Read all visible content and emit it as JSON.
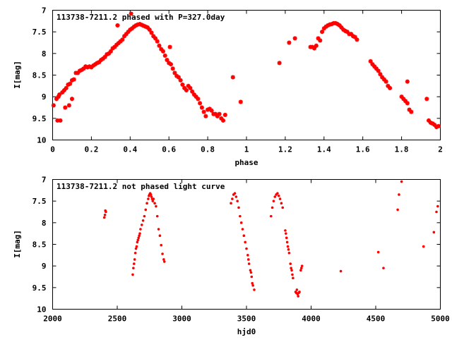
{
  "chart_data": [
    {
      "type": "scatter",
      "title": "113738-7211.2 phased with P=327.0day",
      "xlabel": "phase",
      "ylabel": "I[mag]",
      "xlim": [
        0,
        2
      ],
      "ylim": [
        10,
        7
      ],
      "y_inverted": true,
      "marker_color": "#ff0000",
      "marker": "cross",
      "x_ticks": [
        0,
        0.2,
        0.4,
        0.6,
        0.8,
        1,
        1.2,
        1.4,
        1.6,
        1.8,
        2
      ],
      "x_tick_labels": [
        "0",
        "0.2",
        "0.4",
        "0.6",
        "0.8",
        "1",
        "1.2",
        "1.4",
        "1.6",
        "1.8",
        "2"
      ],
      "y_ticks": [
        7,
        7.5,
        8,
        8.5,
        9,
        9.5,
        10
      ],
      "y_tick_labels": [
        "7",
        "7.5",
        "8",
        "8.5",
        "9",
        "9.5",
        "10"
      ],
      "grid": false,
      "legend": "none",
      "series": [
        {
          "points": [
            [
              0.005,
              9.2
            ],
            [
              0.02,
              9.05
            ],
            [
              0.025,
              9.55
            ],
            [
              0.03,
              9.0
            ],
            [
              0.035,
              8.95
            ],
            [
              0.04,
              9.55
            ],
            [
              0.05,
              8.9
            ],
            [
              0.06,
              8.85
            ],
            [
              0.065,
              9.25
            ],
            [
              0.07,
              8.8
            ],
            [
              0.08,
              8.72
            ],
            [
              0.085,
              9.2
            ],
            [
              0.09,
              8.7
            ],
            [
              0.1,
              8.62
            ],
            [
              0.1,
              9.05
            ],
            [
              0.11,
              8.6
            ],
            [
              0.12,
              8.45
            ],
            [
              0.13,
              8.45
            ],
            [
              0.14,
              8.4
            ],
            [
              0.15,
              8.38
            ],
            [
              0.16,
              8.35
            ],
            [
              0.17,
              8.3
            ],
            [
              0.18,
              8.32
            ],
            [
              0.19,
              8.3
            ],
            [
              0.2,
              8.32
            ],
            [
              0.21,
              8.28
            ],
            [
              0.22,
              8.25
            ],
            [
              0.23,
              8.22
            ],
            [
              0.24,
              8.2
            ],
            [
              0.25,
              8.15
            ],
            [
              0.26,
              8.12
            ],
            [
              0.27,
              8.08
            ],
            [
              0.28,
              8.02
            ],
            [
              0.29,
              8.0
            ],
            [
              0.3,
              7.95
            ],
            [
              0.31,
              7.88
            ],
            [
              0.32,
              7.85
            ],
            [
              0.33,
              7.8
            ],
            [
              0.335,
              7.35
            ],
            [
              0.34,
              7.76
            ],
            [
              0.35,
              7.72
            ],
            [
              0.36,
              7.68
            ],
            [
              0.37,
              7.6
            ],
            [
              0.38,
              7.55
            ],
            [
              0.39,
              7.5
            ],
            [
              0.4,
              7.45
            ],
            [
              0.405,
              7.08
            ],
            [
              0.41,
              7.42
            ],
            [
              0.42,
              7.38
            ],
            [
              0.43,
              7.35
            ],
            [
              0.44,
              7.33
            ],
            [
              0.45,
              7.32
            ],
            [
              0.46,
              7.34
            ],
            [
              0.47,
              7.36
            ],
            [
              0.48,
              7.38
            ],
            [
              0.49,
              7.4
            ],
            [
              0.5,
              7.45
            ],
            [
              0.51,
              7.52
            ],
            [
              0.52,
              7.6
            ],
            [
              0.53,
              7.65
            ],
            [
              0.54,
              7.72
            ],
            [
              0.55,
              7.82
            ],
            [
              0.56,
              7.9
            ],
            [
              0.57,
              7.95
            ],
            [
              0.58,
              8.05
            ],
            [
              0.59,
              8.15
            ],
            [
              0.6,
              8.22
            ],
            [
              0.605,
              7.85
            ],
            [
              0.61,
              8.25
            ],
            [
              0.62,
              8.35
            ],
            [
              0.63,
              8.45
            ],
            [
              0.64,
              8.52
            ],
            [
              0.65,
              8.55
            ],
            [
              0.66,
              8.62
            ],
            [
              0.67,
              8.72
            ],
            [
              0.68,
              8.8
            ],
            [
              0.69,
              8.85
            ],
            [
              0.7,
              8.75
            ],
            [
              0.71,
              8.8
            ],
            [
              0.72,
              8.88
            ],
            [
              0.73,
              8.95
            ],
            [
              0.74,
              9.0
            ],
            [
              0.75,
              9.05
            ],
            [
              0.76,
              9.15
            ],
            [
              0.77,
              9.25
            ],
            [
              0.78,
              9.35
            ],
            [
              0.79,
              9.45
            ],
            [
              0.8,
              9.3
            ],
            [
              0.81,
              9.28
            ],
            [
              0.82,
              9.32
            ],
            [
              0.83,
              9.4
            ],
            [
              0.84,
              9.4
            ],
            [
              0.85,
              9.45
            ],
            [
              0.86,
              9.4
            ],
            [
              0.87,
              9.5
            ],
            [
              0.88,
              9.55
            ],
            [
              0.89,
              9.42
            ],
            [
              0.93,
              8.55
            ],
            [
              0.97,
              9.12
            ],
            [
              1.17,
              8.22
            ],
            [
              1.22,
              7.75
            ],
            [
              1.25,
              7.65
            ],
            [
              1.33,
              7.85
            ],
            [
              1.34,
              7.85
            ],
            [
              1.35,
              7.88
            ],
            [
              1.36,
              7.82
            ],
            [
              1.37,
              7.65
            ],
            [
              1.38,
              7.7
            ],
            [
              1.39,
              7.5
            ],
            [
              1.4,
              7.42
            ],
            [
              1.41,
              7.38
            ],
            [
              1.42,
              7.35
            ],
            [
              1.43,
              7.33
            ],
            [
              1.44,
              7.32
            ],
            [
              1.45,
              7.3
            ],
            [
              1.46,
              7.3
            ],
            [
              1.47,
              7.32
            ],
            [
              1.48,
              7.35
            ],
            [
              1.49,
              7.4
            ],
            [
              1.5,
              7.45
            ],
            [
              1.51,
              7.48
            ],
            [
              1.52,
              7.5
            ],
            [
              1.53,
              7.55
            ],
            [
              1.54,
              7.55
            ],
            [
              1.55,
              7.6
            ],
            [
              1.56,
              7.62
            ],
            [
              1.57,
              7.68
            ],
            [
              1.64,
              8.18
            ],
            [
              1.65,
              8.25
            ],
            [
              1.66,
              8.3
            ],
            [
              1.67,
              8.35
            ],
            [
              1.68,
              8.4
            ],
            [
              1.69,
              8.48
            ],
            [
              1.7,
              8.55
            ],
            [
              1.71,
              8.6
            ],
            [
              1.72,
              8.65
            ],
            [
              1.73,
              8.75
            ],
            [
              1.74,
              8.8
            ],
            [
              1.8,
              9.0
            ],
            [
              1.81,
              9.05
            ],
            [
              1.82,
              9.1
            ],
            [
              1.83,
              9.15
            ],
            [
              1.84,
              9.3
            ],
            [
              1.85,
              9.35
            ],
            [
              1.83,
              8.65
            ],
            [
              1.93,
              9.05
            ],
            [
              1.94,
              9.55
            ],
            [
              1.95,
              9.6
            ],
            [
              1.96,
              9.62
            ],
            [
              1.97,
              9.65
            ],
            [
              1.98,
              9.7
            ],
            [
              1.99,
              9.68
            ]
          ]
        }
      ]
    },
    {
      "type": "scatter",
      "title": "113738-7211.2 not phased light curve",
      "xlabel": "hjd0",
      "ylabel": "I[mag]",
      "xlim": [
        2000,
        5000
      ],
      "ylim": [
        10,
        7
      ],
      "y_inverted": true,
      "marker_color": "#ff0000",
      "marker": "dot",
      "x_ticks": [
        2000,
        2500,
        3000,
        3500,
        4000,
        4500,
        5000
      ],
      "x_tick_labels": [
        "2000",
        "2500",
        "3000",
        "3500",
        "4000",
        "4500",
        "5000"
      ],
      "y_ticks": [
        7,
        7.5,
        8,
        8.5,
        9,
        9.5,
        10
      ],
      "y_tick_labels": [
        "7",
        "7.5",
        "8",
        "8.5",
        "9",
        "9.5",
        "10"
      ],
      "grid": false,
      "legend": "none",
      "series": [
        {
          "points": [
            [
              2400,
              7.88
            ],
            [
              2405,
              7.82
            ],
            [
              2408,
              7.72
            ],
            [
              2412,
              7.75
            ],
            [
              2620,
              9.2
            ],
            [
              2625,
              9.05
            ],
            [
              2630,
              8.95
            ],
            [
              2635,
              8.85
            ],
            [
              2640,
              8.7
            ],
            [
              2645,
              8.6
            ],
            [
              2650,
              8.55
            ],
            [
              2655,
              8.45
            ],
            [
              2660,
              8.4
            ],
            [
              2665,
              8.35
            ],
            [
              2670,
              8.3
            ],
            [
              2675,
              8.25
            ],
            [
              2680,
              8.15
            ],
            [
              2690,
              8.05
            ],
            [
              2700,
              7.95
            ],
            [
              2710,
              7.85
            ],
            [
              2720,
              7.7
            ],
            [
              2730,
              7.55
            ],
            [
              2740,
              7.45
            ],
            [
              2745,
              7.38
            ],
            [
              2750,
              7.35
            ],
            [
              2755,
              7.32
            ],
            [
              2760,
              7.35
            ],
            [
              2765,
              7.4
            ],
            [
              2770,
              7.45
            ],
            [
              2775,
              7.5
            ],
            [
              2780,
              7.45
            ],
            [
              2790,
              7.55
            ],
            [
              2800,
              7.62
            ],
            [
              2810,
              7.85
            ],
            [
              2820,
              8.15
            ],
            [
              2830,
              8.3
            ],
            [
              2840,
              8.52
            ],
            [
              2850,
              8.72
            ],
            [
              2860,
              8.85
            ],
            [
              2865,
              8.9
            ],
            [
              3380,
              7.55
            ],
            [
              3390,
              7.45
            ],
            [
              3400,
              7.35
            ],
            [
              3410,
              7.32
            ],
            [
              3420,
              7.4
            ],
            [
              3430,
              7.5
            ],
            [
              3440,
              7.65
            ],
            [
              3450,
              7.85
            ],
            [
              3460,
              8.0
            ],
            [
              3470,
              8.15
            ],
            [
              3480,
              8.3
            ],
            [
              3490,
              8.45
            ],
            [
              3500,
              8.6
            ],
            [
              3510,
              8.75
            ],
            [
              3515,
              8.85
            ],
            [
              3520,
              8.95
            ],
            [
              3530,
              9.1
            ],
            [
              3535,
              9.15
            ],
            [
              3540,
              9.25
            ],
            [
              3545,
              9.4
            ],
            [
              3550,
              9.45
            ],
            [
              3560,
              9.55
            ],
            [
              3690,
              7.85
            ],
            [
              3700,
              7.65
            ],
            [
              3710,
              7.5
            ],
            [
              3720,
              7.4
            ],
            [
              3730,
              7.35
            ],
            [
              3740,
              7.32
            ],
            [
              3750,
              7.38
            ],
            [
              3760,
              7.45
            ],
            [
              3770,
              7.55
            ],
            [
              3780,
              7.65
            ],
            [
              3800,
              8.18
            ],
            [
              3805,
              8.25
            ],
            [
              3810,
              8.35
            ],
            [
              3815,
              8.45
            ],
            [
              3820,
              8.55
            ],
            [
              3825,
              8.62
            ],
            [
              3830,
              8.7
            ],
            [
              3840,
              8.95
            ],
            [
              3845,
              9.05
            ],
            [
              3850,
              9.1
            ],
            [
              3855,
              9.2
            ],
            [
              3860,
              9.28
            ],
            [
              3880,
              9.6
            ],
            [
              3885,
              9.62
            ],
            [
              3890,
              9.55
            ],
            [
              3895,
              9.65
            ],
            [
              3900,
              9.7
            ],
            [
              3905,
              9.62
            ],
            [
              3910,
              9.6
            ],
            [
              3920,
              9.1
            ],
            [
              3925,
              9.05
            ],
            [
              3930,
              9.0
            ],
            [
              4230,
              9.12
            ],
            [
              4520,
              8.68
            ],
            [
              4560,
              9.05
            ],
            [
              4670,
              7.7
            ],
            [
              4680,
              7.35
            ],
            [
              4700,
              7.05
            ],
            [
              4870,
              8.55
            ],
            [
              4950,
              8.22
            ],
            [
              4970,
              7.75
            ],
            [
              4980,
              7.62
            ]
          ]
        }
      ]
    }
  ]
}
